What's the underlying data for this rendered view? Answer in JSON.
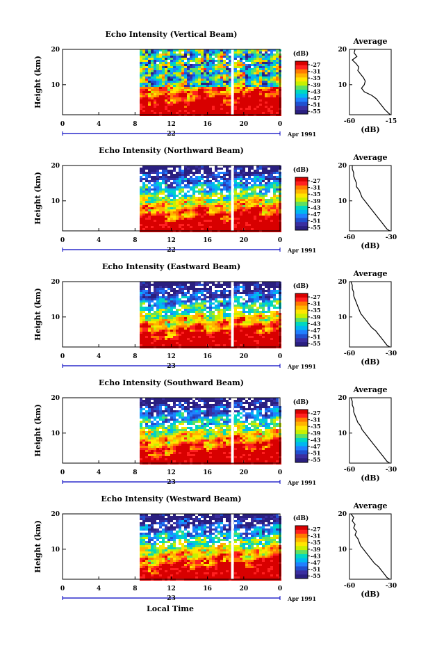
{
  "figure": {
    "xaxis_title": "Local Time",
    "x_ticks": [
      "0",
      "4",
      "8",
      "12",
      "16",
      "20",
      "0"
    ],
    "y_ticks": [
      "20",
      "10"
    ],
    "y_label": "Height (km)",
    "date_label": "Apr 1991",
    "colorbar_title": "(dB)",
    "colorbar_ticks": [
      "-27",
      "-31",
      "-35",
      "-39",
      "-43",
      "-47",
      "-51",
      "-55"
    ],
    "average_title": "Average",
    "average_xlabel": "(dB)",
    "colors": {
      "scale": [
        "#d80000",
        "#ff2020",
        "#ff7a00",
        "#ffb400",
        "#ffe600",
        "#c8f000",
        "#60e060",
        "#00d8c0",
        "#00b8f0",
        "#2080ff",
        "#2050d0",
        "#3a2ea0",
        "#2a1f80"
      ],
      "gap": "#ffffff",
      "axis_blue": "#0000c0"
    }
  },
  "chart_data": [
    {
      "type": "heatmap",
      "title": "Echo Intensity (Vertical Beam)",
      "day_label": "22",
      "x_unit": "local time (h)",
      "xlim": [
        0,
        24
      ],
      "y_unit": "height (km)",
      "ylim": [
        1.5,
        20
      ],
      "color_unit": "dB",
      "color_range": [
        -56,
        -27
      ],
      "data_start_h": 8.5,
      "gap_h": [
        18.6,
        18.9
      ],
      "average_profile": {
        "xlim": [
          -60,
          -15
        ],
        "x_ticks": [
          "-60",
          "-15"
        ],
        "height_km": [
          1.5,
          2,
          3,
          4,
          5,
          6,
          7,
          8,
          9,
          10,
          11,
          12,
          13,
          14,
          15,
          16,
          17,
          18,
          19,
          20
        ],
        "db": [
          -16,
          -18,
          -22,
          -25,
          -28,
          -31,
          -36,
          -44,
          -47,
          -44,
          -43,
          -45,
          -48,
          -51,
          -50,
          -53,
          -57,
          -52,
          -55,
          -54
        ]
      }
    },
    {
      "type": "heatmap",
      "title": "Echo Intensity (Northward Beam)",
      "day_label": "22",
      "x_unit": "local time (h)",
      "xlim": [
        0,
        24
      ],
      "y_unit": "height (km)",
      "ylim": [
        1.5,
        20
      ],
      "color_unit": "dB",
      "color_range": [
        -56,
        -27
      ],
      "data_start_h": 8.5,
      "gap_h": [
        18.6,
        18.9
      ],
      "average_profile": {
        "xlim": [
          -60,
          -30
        ],
        "x_ticks": [
          "-60",
          "-30"
        ],
        "height_km": [
          1.5,
          2,
          3,
          4,
          5,
          6,
          7,
          8,
          9,
          10,
          11,
          12,
          13,
          14,
          15,
          16,
          17,
          18,
          19,
          20
        ],
        "db": [
          -31,
          -33,
          -35,
          -37,
          -39,
          -41,
          -43,
          -45,
          -47,
          -49,
          -51,
          -52,
          -53,
          -55,
          -55,
          -56,
          -57,
          -57,
          -58,
          -58
        ]
      }
    },
    {
      "type": "heatmap",
      "title": "Echo Intensity (Eastward Beam)",
      "day_label": "23",
      "x_unit": "local time (h)",
      "xlim": [
        0,
        24
      ],
      "y_unit": "height (km)",
      "ylim": [
        1.5,
        20
      ],
      "color_unit": "dB",
      "color_range": [
        -56,
        -27
      ],
      "data_start_h": 8.5,
      "gap_h": [
        18.6,
        18.9
      ],
      "average_profile": {
        "xlim": [
          -60,
          -30
        ],
        "x_ticks": [
          "-60",
          "-30"
        ],
        "height_km": [
          1.5,
          2,
          3,
          4,
          5,
          6,
          7,
          8,
          9,
          10,
          11,
          12,
          13,
          14,
          15,
          16,
          17,
          18,
          19,
          20
        ],
        "db": [
          -31,
          -33,
          -35,
          -37,
          -39,
          -41,
          -44,
          -46,
          -48,
          -50,
          -52,
          -53,
          -54,
          -55,
          -56,
          -57,
          -57,
          -58,
          -58,
          -59
        ]
      }
    },
    {
      "type": "heatmap",
      "title": "Echo Intensity (Southward Beam)",
      "day_label": "23",
      "x_unit": "local time (h)",
      "xlim": [
        0,
        24
      ],
      "y_unit": "height (km)",
      "ylim": [
        1.5,
        20
      ],
      "color_unit": "dB",
      "color_range": [
        -56,
        -27
      ],
      "data_start_h": 8.5,
      "gap_h": [
        18.6,
        18.9
      ],
      "average_profile": {
        "xlim": [
          -60,
          -30
        ],
        "x_ticks": [
          "-60",
          "-30"
        ],
        "height_km": [
          1.5,
          2,
          3,
          4,
          5,
          6,
          7,
          8,
          9,
          10,
          11,
          12,
          13,
          14,
          15,
          16,
          17,
          18,
          19,
          20
        ],
        "db": [
          -31,
          -33,
          -35,
          -37,
          -39,
          -41,
          -43,
          -45,
          -47,
          -49,
          -51,
          -52,
          -54,
          -55,
          -56,
          -57,
          -57,
          -58,
          -58,
          -59
        ]
      }
    },
    {
      "type": "heatmap",
      "title": "Echo Intensity (Westward Beam)",
      "day_label": "23",
      "x_unit": "local time (h)",
      "xlim": [
        0,
        24
      ],
      "y_unit": "height (km)",
      "ylim": [
        1.5,
        20
      ],
      "color_unit": "dB",
      "color_range": [
        -56,
        -27
      ],
      "data_start_h": 8.5,
      "gap_h": [
        18.6,
        18.9
      ],
      "average_profile": {
        "xlim": [
          -60,
          -30
        ],
        "x_ticks": [
          "-60",
          "-30"
        ],
        "height_km": [
          1.5,
          2,
          3,
          4,
          5,
          6,
          7,
          8,
          9,
          10,
          11,
          12,
          13,
          14,
          15,
          16,
          17,
          18,
          19,
          20
        ],
        "db": [
          -31,
          -33,
          -35,
          -37,
          -39,
          -42,
          -44,
          -46,
          -48,
          -50,
          -52,
          -53,
          -54,
          -56,
          -55,
          -57,
          -56,
          -58,
          -57,
          -59
        ]
      }
    }
  ]
}
